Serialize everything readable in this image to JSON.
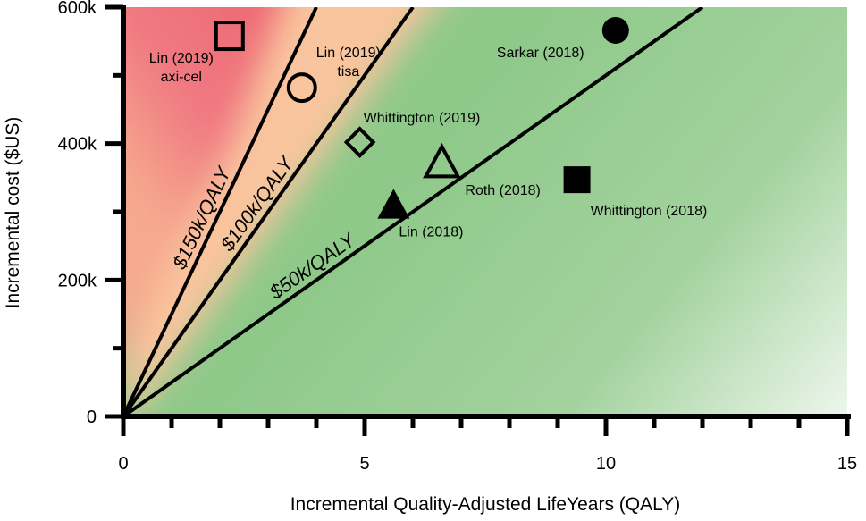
{
  "chart_data": {
    "type": "scatter",
    "xlabel": "Incremental Quality-Adjusted LifeYears (QALY)",
    "ylabel": "Incremental cost ($US)",
    "xlim": [
      0,
      15
    ],
    "ylim": [
      0,
      600000
    ],
    "x_ticks": [
      {
        "value": 0,
        "label": "0"
      },
      {
        "value": 5,
        "label": "5"
      },
      {
        "value": 10,
        "label": "10"
      },
      {
        "value": 15,
        "label": "15"
      }
    ],
    "x_minor_ticks": [
      1,
      2,
      3,
      4,
      6,
      7,
      8,
      9,
      11,
      12,
      13,
      14
    ],
    "y_ticks": [
      {
        "value": 0,
        "label": "0"
      },
      {
        "value": 200000,
        "label": "200k"
      },
      {
        "value": 400000,
        "label": "400k"
      },
      {
        "value": 600000,
        "label": "600k"
      }
    ],
    "y_minor_ticks": [
      100000,
      300000,
      500000
    ],
    "threshold_lines": [
      {
        "label": "$150k/QALY",
        "slope": 150000
      },
      {
        "label": "$100k/QALY",
        "slope": 100000
      },
      {
        "label": "$50k/QALY",
        "slope": 50000
      }
    ],
    "background_zones": {
      "expensive": "#f0707a",
      "intermediate": "#f9c59e",
      "cost_effective": "#8fc98a"
    },
    "points": [
      {
        "label": "Lin (2019)\naxi-cel",
        "x": 2.2,
        "y": 558000,
        "marker": "square",
        "filled": false
      },
      {
        "label": "Lin (2019)\ntisa",
        "x": 3.7,
        "y": 482000,
        "marker": "circle",
        "filled": false
      },
      {
        "label": "Whittington (2019)",
        "x": 4.9,
        "y": 402000,
        "marker": "diamond",
        "filled": false
      },
      {
        "label": "Roth (2018)",
        "x": 6.6,
        "y": 372000,
        "marker": "triangle",
        "filled": false
      },
      {
        "label": "Lin (2018)",
        "x": 5.6,
        "y": 310000,
        "marker": "triangle",
        "filled": true
      },
      {
        "label": "Whittington (2018)",
        "x": 9.4,
        "y": 347000,
        "marker": "square",
        "filled": true
      },
      {
        "label": "Sarkar (2018)",
        "x": 10.2,
        "y": 566000,
        "marker": "circle",
        "filled": true
      }
    ]
  }
}
